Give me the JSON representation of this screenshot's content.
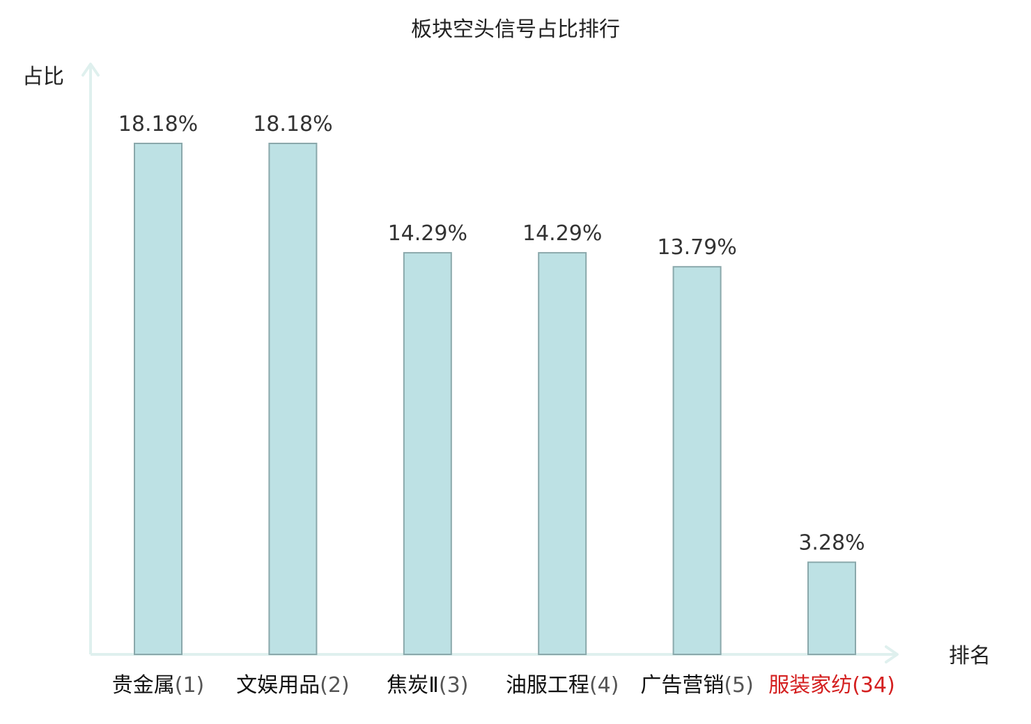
{
  "chart_data": {
    "type": "bar",
    "title": "板块空头信号占比排行",
    "ylabel": "占比",
    "xlabel": "排名",
    "ylim": [
      0,
      20
    ],
    "grid": false,
    "legend": "none",
    "categories": [
      {
        "name": "贵金属",
        "rank": "(1)"
      },
      {
        "name": "文娱用品",
        "rank": "(2)"
      },
      {
        "name": "焦炭Ⅱ",
        "rank": "(3)"
      },
      {
        "name": "油服工程",
        "rank": "(4)"
      },
      {
        "name": "广告营销",
        "rank": "(5)"
      },
      {
        "name": "服装家纺",
        "rank": "(34)"
      }
    ],
    "values": [
      18.18,
      18.18,
      14.29,
      14.29,
      13.79,
      3.28
    ],
    "value_labels": [
      "18.18%",
      "18.18%",
      "14.29%",
      "14.29%",
      "13.79%",
      "3.28%"
    ],
    "highlight_index": 5
  },
  "colors": {
    "bar_fill": "#bde1e4",
    "bar_stroke": "#8aa8ab",
    "axis": "#dff0ee",
    "highlight_text": "#d42020"
  }
}
